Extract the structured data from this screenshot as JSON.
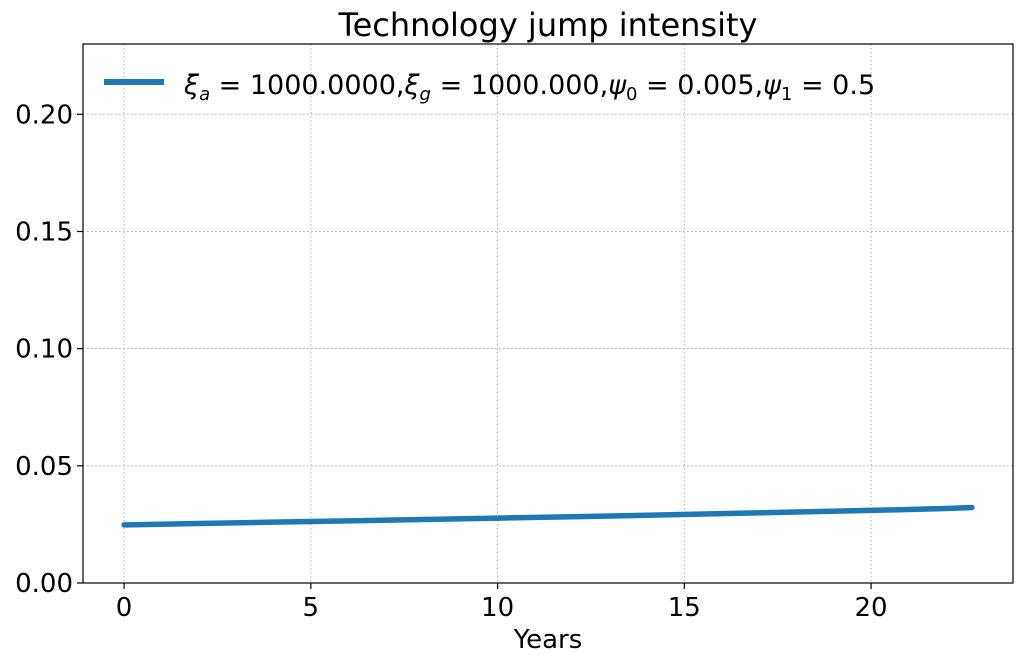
{
  "chart_data": {
    "type": "line",
    "title": "Technology jump intensity",
    "xlabel": "Years",
    "ylabel": "",
    "xlim": [
      -1.1,
      23.8
    ],
    "ylim": [
      0.0,
      0.23
    ],
    "x_ticks": [
      0,
      5,
      10,
      15,
      20
    ],
    "x_tick_labels": [
      "0",
      "5",
      "10",
      "15",
      "20"
    ],
    "y_ticks": [
      0.0,
      0.05,
      0.1,
      0.15,
      0.2
    ],
    "y_tick_labels": [
      "0.00",
      "0.05",
      "0.10",
      "0.15",
      "0.20"
    ],
    "grid": true,
    "legend_position": "top-left",
    "series": [
      {
        "name": "ξa = 1000.0000,ξg = 1000.000,ψ0 = 0.005,ψ1 = 0.5",
        "legend_parts": {
          "xi": "ξ",
          "sub_a": "a",
          "eq1": " = 1000.0000,",
          "sub_g": "g",
          "eq2": " = 1000.000,",
          "psi": "ψ",
          "sub_0": "0",
          "eq3": " = 0.005,",
          "sub_1": "1",
          "eq4": " = 0.5"
        },
        "color": "#1f77b4",
        "x": [
          0,
          2,
          4,
          6,
          8,
          10,
          12,
          14,
          16,
          18,
          20,
          22,
          22.7
        ],
        "y": [
          0.0248,
          0.0254,
          0.026,
          0.0265,
          0.0271,
          0.0277,
          0.0283,
          0.0289,
          0.0296,
          0.0303,
          0.031,
          0.0318,
          0.0322
        ]
      }
    ]
  }
}
